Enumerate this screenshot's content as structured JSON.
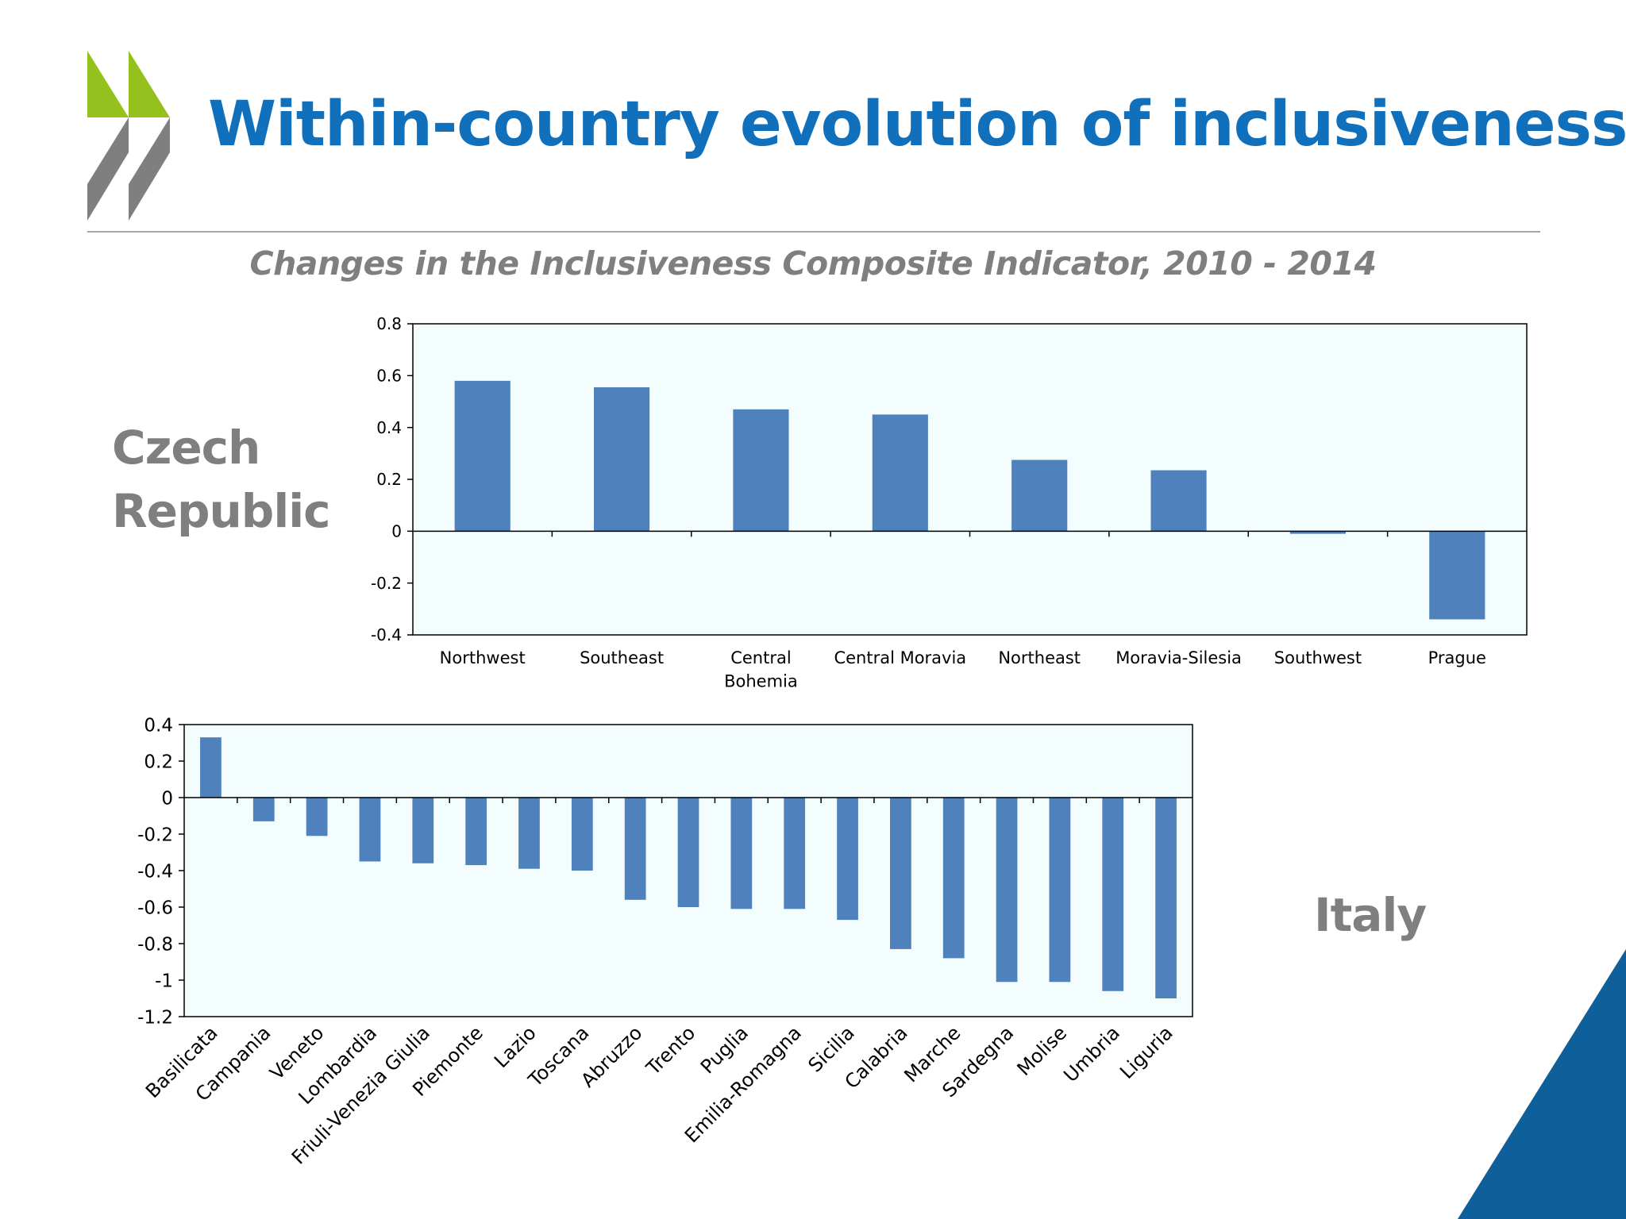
{
  "slide": {
    "title": "Within-country evolution of inclusiveness",
    "subtitle": "Changes in the Inclusiveness Composite Indicator, 2010 - 2014",
    "brand_colors": {
      "title_blue": "#1070bc",
      "logo_green": "#94c11e",
      "logo_grey": "#7f7f7f",
      "corner_blue": "#0f5f9b"
    },
    "logo_icon": "oecd-chevrons-icon"
  },
  "labels": {
    "czech_line1": "Czech",
    "czech_line2": "Republic",
    "italy": "Italy"
  },
  "chart_data": [
    {
      "id": "czech",
      "type": "bar",
      "title": "",
      "xlabel": "",
      "ylabel": "",
      "categories": [
        "Northwest",
        "Southeast",
        "Central Bohemia",
        "Central Moravia",
        "Northeast",
        "Moravia-Silesia",
        "Southwest",
        "Prague"
      ],
      "category_lines": [
        [
          "Northwest"
        ],
        [
          "Southeast"
        ],
        [
          "Central",
          "Bohemia"
        ],
        [
          "Central Moravia"
        ],
        [
          "Northeast"
        ],
        [
          "Moravia-Silesia"
        ],
        [
          "Southwest"
        ],
        [
          "Prague"
        ]
      ],
      "values": [
        0.58,
        0.555,
        0.47,
        0.45,
        0.275,
        0.235,
        -0.01,
        -0.34
      ],
      "ylim": [
        -0.4,
        0.8
      ],
      "yticks": [
        0.8,
        0.6,
        0.4,
        0.2,
        0,
        -0.2,
        -0.4
      ],
      "grid": false,
      "legend": "none",
      "bar_color": "#4f81bd",
      "plot_background": "#f3fdfd"
    },
    {
      "id": "italy",
      "type": "bar",
      "title": "",
      "xlabel": "",
      "ylabel": "",
      "categories": [
        "Basilicata",
        "Campania",
        "Veneto",
        "Lombardia",
        "Friuli-Venezia Giulia",
        "Piemonte",
        "Lazio",
        "Toscana",
        "Abruzzo",
        "Trento",
        "Puglia",
        "Emilia-Romagna",
        "Sicilia",
        "Calabria",
        "Marche",
        "Sardegna",
        "Molise",
        "Umbria",
        "Liguria"
      ],
      "values": [
        0.33,
        -0.13,
        -0.21,
        -0.35,
        -0.36,
        -0.37,
        -0.39,
        -0.4,
        -0.56,
        -0.6,
        -0.61,
        -0.61,
        -0.67,
        -0.83,
        -0.88,
        -1.01,
        -1.01,
        -1.06,
        -1.1
      ],
      "ylim": [
        -1.2,
        0.4
      ],
      "yticks": [
        0.4,
        0.2,
        0,
        -0.2,
        -0.4,
        -0.6,
        -0.8,
        -1,
        -1.2
      ],
      "grid": false,
      "legend": "none",
      "bar_color": "#4f81bd",
      "plot_background": "#f3fdfd"
    }
  ]
}
